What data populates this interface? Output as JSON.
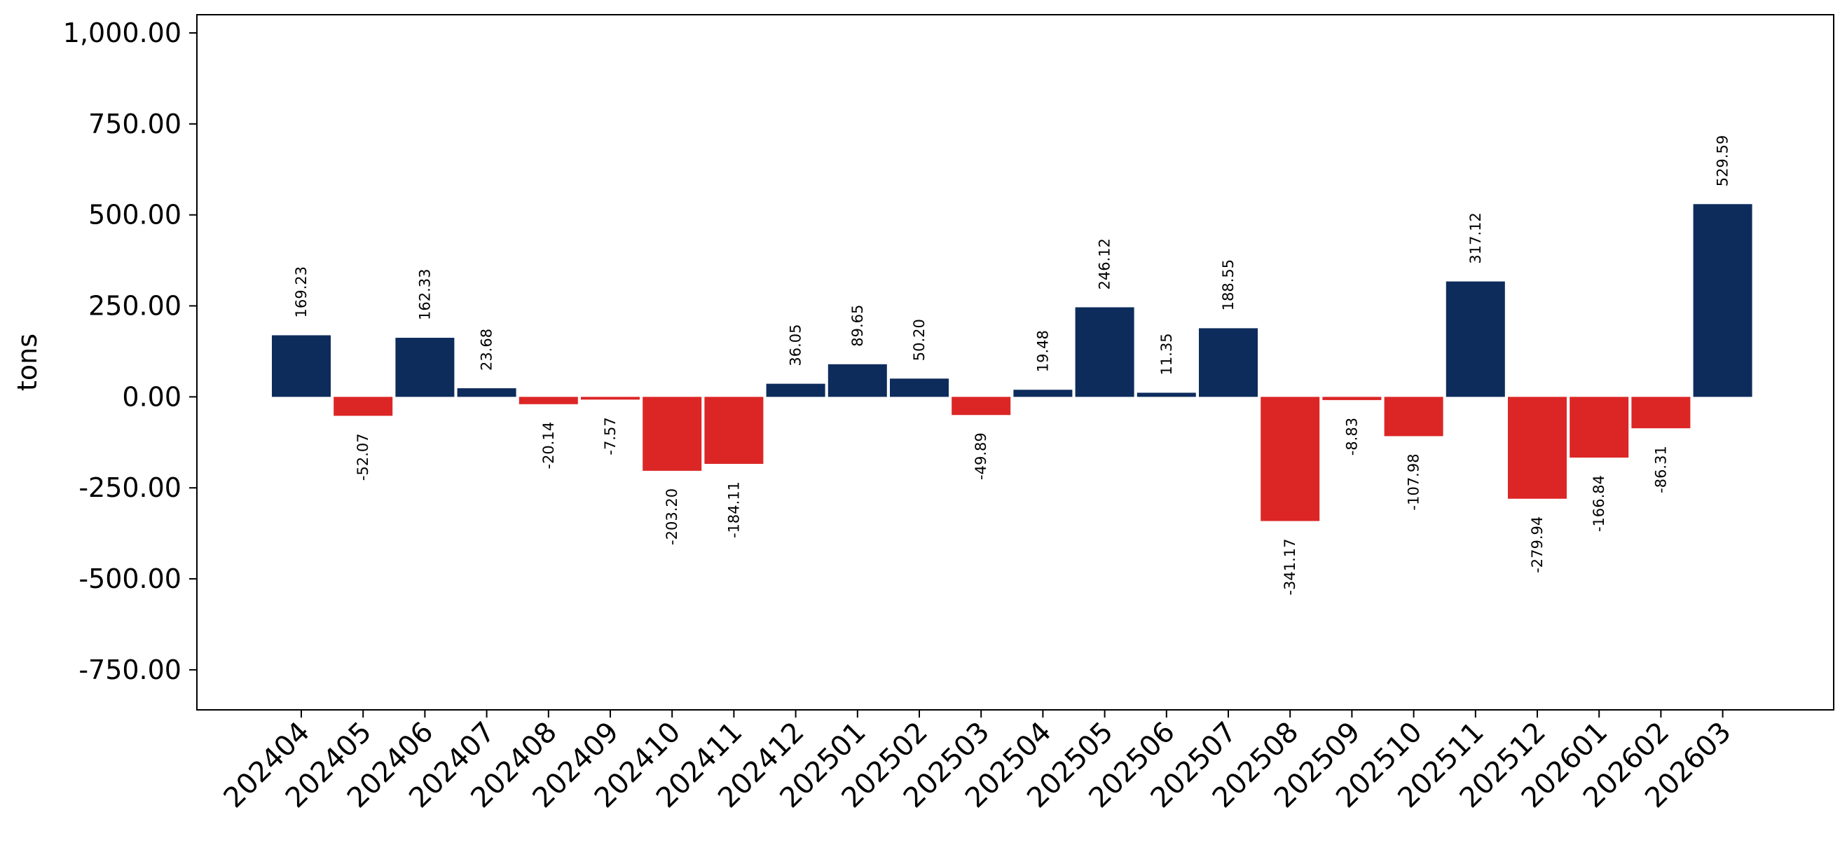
{
  "chart_data": {
    "type": "bar",
    "title": "",
    "xlabel": "",
    "ylabel": "tons",
    "ylim": [
      -860,
      1050
    ],
    "yticks": [
      1000,
      750,
      500,
      250,
      0,
      -250,
      -500,
      -750
    ],
    "ytick_labels": [
      "1,000.00",
      "750.00",
      "500.00",
      "250.00",
      "0.00",
      "-250.00",
      "-500.00",
      "-750.00"
    ],
    "grid": false,
    "legend": "none",
    "colors": {
      "positive": "#0d2c5c",
      "negative": "#dc2626",
      "axis": "#000000",
      "background": "#ffffff"
    },
    "categories": [
      "202404",
      "202405",
      "202406",
      "202407",
      "202408",
      "202409",
      "202410",
      "202411",
      "202412",
      "202501",
      "202502",
      "202503",
      "202504",
      "202505",
      "202506",
      "202507",
      "202508",
      "202509",
      "202510",
      "202511",
      "202512",
      "202601",
      "202602",
      "202603"
    ],
    "values": [
      169.23,
      -52.07,
      162.33,
      23.68,
      -20.14,
      -7.57,
      -203.2,
      -184.11,
      36.05,
      89.65,
      50.2,
      -49.89,
      19.48,
      246.12,
      11.35,
      188.55,
      -341.17,
      -8.83,
      -107.98,
      317.12,
      -279.94,
      -166.84,
      -86.31,
      529.59
    ],
    "value_labels": [
      "169.23",
      "-52.07",
      "162.33",
      "23.68",
      "-20.14",
      "-7.57",
      "-203.20",
      "-184.11",
      "36.05",
      "89.65",
      "50.20",
      "-49.89",
      "19.48",
      "246.12",
      "11.35",
      "188.55",
      "-341.17",
      "-8.83",
      "-107.98",
      "317.12",
      "-279.94",
      "-166.84",
      "-86.31",
      "529.59"
    ]
  }
}
